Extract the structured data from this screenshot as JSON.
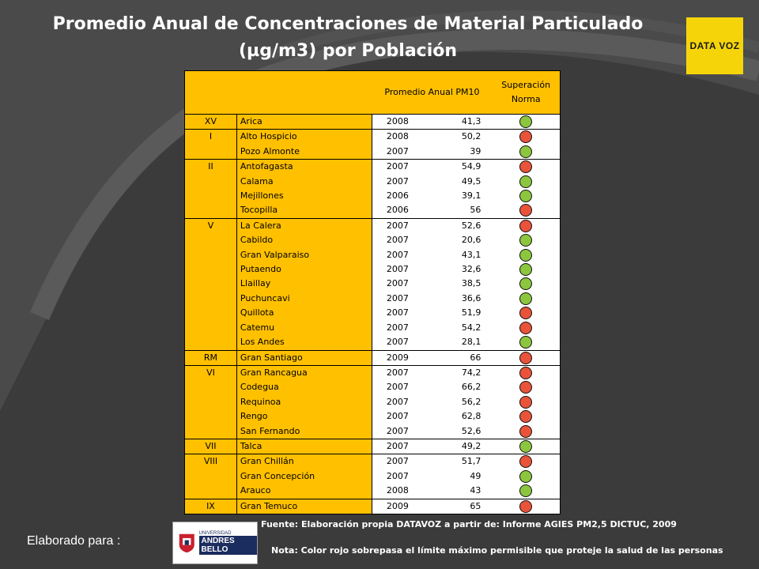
{
  "title_line1": "Promedio Anual de Concentraciones de Material Particulado",
  "title_line2": "(µg/m3) por Población",
  "logo_text": "DATA VOZ",
  "header": {
    "pm10": "Promedio Anual PM10",
    "superacion": "Superación Norma"
  },
  "colors": {
    "red": "#e8533a",
    "green": "#8cc63f",
    "yellow": "#ffc000"
  },
  "rows": [
    {
      "region": "XV",
      "city": "Arica",
      "year": "2008",
      "value": "41,3",
      "status": "green",
      "group_start": true
    },
    {
      "region": "I",
      "city": "Alto Hospicio",
      "year": "2008",
      "value": "50,2",
      "status": "red",
      "group_start": true
    },
    {
      "region": "",
      "city": "Pozo Almonte",
      "year": "2007",
      "value": "39",
      "status": "green",
      "group_start": false
    },
    {
      "region": "II",
      "city": "Antofagasta",
      "year": "2007",
      "value": "54,9",
      "status": "red",
      "group_start": true
    },
    {
      "region": "",
      "city": "Calama",
      "year": "2007",
      "value": "49,5",
      "status": "green",
      "group_start": false
    },
    {
      "region": "",
      "city": "Mejillones",
      "year": "2006",
      "value": "39,1",
      "status": "green",
      "group_start": false
    },
    {
      "region": "",
      "city": "Tocopilla",
      "year": "2006",
      "value": "56",
      "status": "red",
      "group_start": false
    },
    {
      "region": "V",
      "city": "La Calera",
      "year": "2007",
      "value": "52,6",
      "status": "red",
      "group_start": true
    },
    {
      "region": "",
      "city": "Cabildo",
      "year": "2007",
      "value": "20,6",
      "status": "green",
      "group_start": false
    },
    {
      "region": "",
      "city": "Gran Valparaiso",
      "year": "2007",
      "value": "43,1",
      "status": "green",
      "group_start": false
    },
    {
      "region": "",
      "city": "Putaendo",
      "year": "2007",
      "value": "32,6",
      "status": "green",
      "group_start": false
    },
    {
      "region": "",
      "city": "Llaillay",
      "year": "2007",
      "value": "38,5",
      "status": "green",
      "group_start": false
    },
    {
      "region": "",
      "city": "Puchuncavi",
      "year": "2007",
      "value": "36,6",
      "status": "green",
      "group_start": false
    },
    {
      "region": "",
      "city": "Quillota",
      "year": "2007",
      "value": "51,9",
      "status": "red",
      "group_start": false
    },
    {
      "region": "",
      "city": "Catemu",
      "year": "2007",
      "value": "54,2",
      "status": "red",
      "group_start": false
    },
    {
      "region": "",
      "city": "Los Andes",
      "year": "2007",
      "value": "28,1",
      "status": "green",
      "group_start": false
    },
    {
      "region": "RM",
      "city": "Gran Santiago",
      "year": "2009",
      "value": "66",
      "status": "red",
      "group_start": true
    },
    {
      "region": "VI",
      "city": "Gran Rancagua",
      "year": "2007",
      "value": "74,2",
      "status": "red",
      "group_start": true
    },
    {
      "region": "",
      "city": "Codegua",
      "year": "2007",
      "value": "66,2",
      "status": "red",
      "group_start": false
    },
    {
      "region": "",
      "city": "Requinoa",
      "year": "2007",
      "value": "56,2",
      "status": "red",
      "group_start": false
    },
    {
      "region": "",
      "city": "Rengo",
      "year": "2007",
      "value": "62,8",
      "status": "red",
      "group_start": false
    },
    {
      "region": "",
      "city": "San Fernando",
      "year": "2007",
      "value": "52,6",
      "status": "red",
      "group_start": false
    },
    {
      "region": "VII",
      "city": "Talca",
      "year": "2007",
      "value": "49,2",
      "status": "green",
      "group_start": true
    },
    {
      "region": "VIII",
      "city": "Gran Chillán",
      "year": "2007",
      "value": "51,7",
      "status": "red",
      "group_start": true
    },
    {
      "region": "",
      "city": "Gran Concepción",
      "year": "2007",
      "value": "49",
      "status": "green",
      "group_start": false
    },
    {
      "region": "",
      "city": "Arauco",
      "year": "2008",
      "value": "43",
      "status": "green",
      "group_start": false
    },
    {
      "region": "IX",
      "city": "Gran Temuco",
      "year": "2009",
      "value": "65",
      "status": "red",
      "group_start": true
    }
  ],
  "footer": {
    "elaborado": "Elaborado para :",
    "uab_small": "UNIVERSIDAD",
    "uab_big": "ANDRES BELLO",
    "source": "Fuente: Elaboración propia DATAVOZ a partir de: Informe AGIES PM2,5 DICTUC, 2009",
    "note": "Nota: Color rojo sobrepasa el límite máximo permisible  que proteje la salud de las personas"
  }
}
